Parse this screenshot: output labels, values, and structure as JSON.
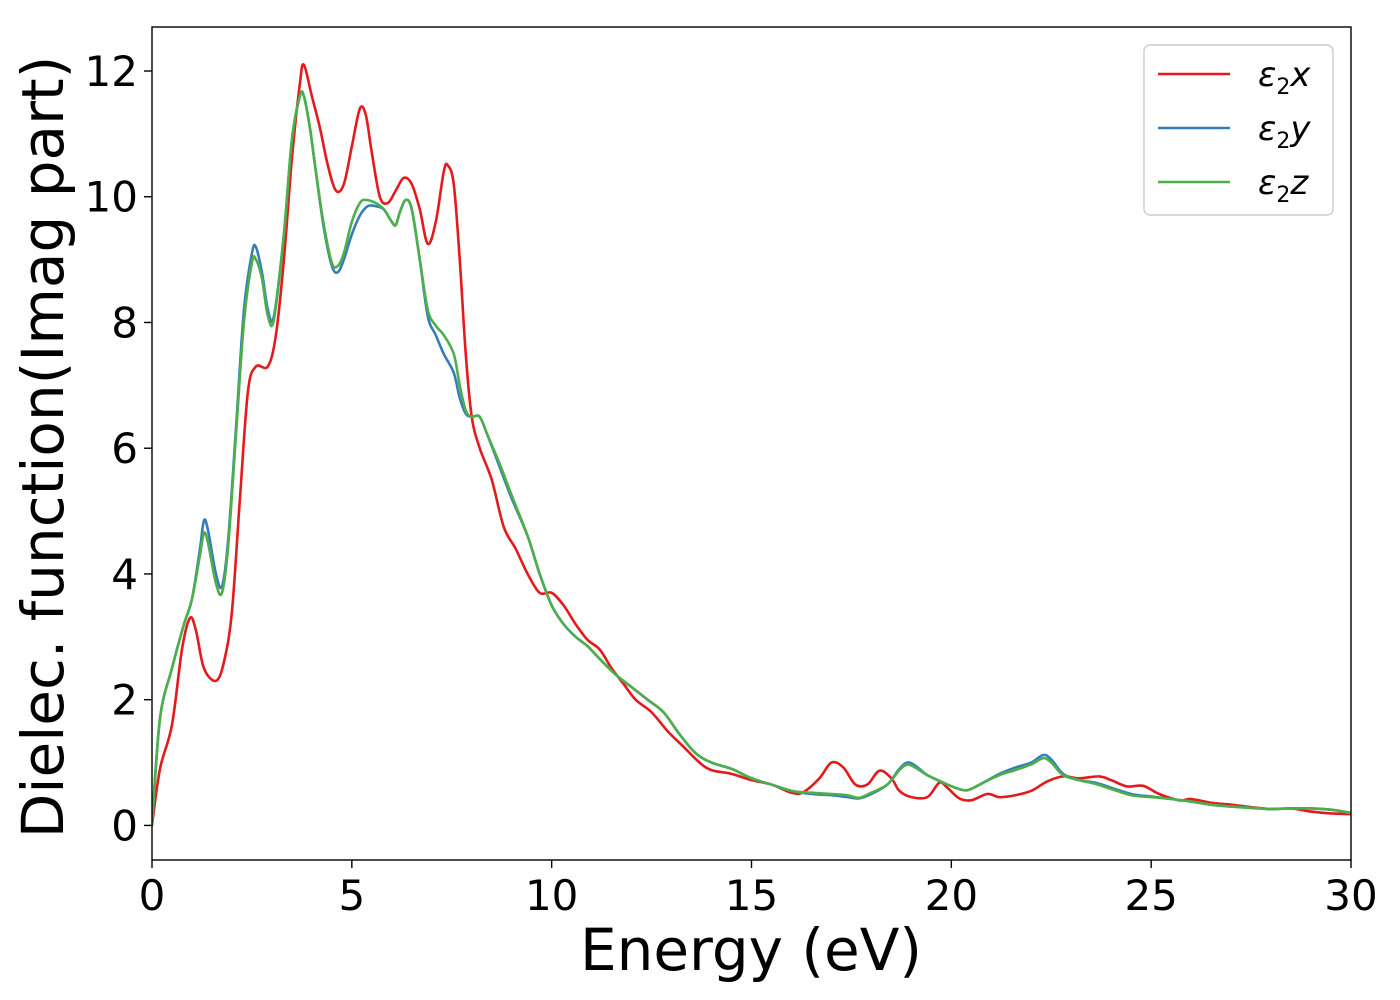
{
  "chart_data": {
    "type": "line",
    "title": "",
    "xlabel": "Energy (eV)",
    "ylabel": "Dielec. function(Imag part)",
    "xlim": [
      0,
      30
    ],
    "ylim": [
      -0.55,
      12.7
    ],
    "xticks": [
      0,
      5,
      10,
      15,
      20,
      25,
      30
    ],
    "yticks": [
      0,
      2,
      4,
      6,
      8,
      10,
      12
    ],
    "grid": false,
    "legend_position": "top-right",
    "series": [
      {
        "name": "ε2x",
        "legend": {
          "base": "ε",
          "sub": "2",
          "suffix": "x"
        },
        "color": "#e41a1c",
        "points": [
          [
            0,
            0
          ],
          [
            0.2,
            0.9
          ],
          [
            0.5,
            1.6
          ],
          [
            0.75,
            2.8
          ],
          [
            0.95,
            3.3
          ],
          [
            1.1,
            3.1
          ],
          [
            1.3,
            2.5
          ],
          [
            1.6,
            2.3
          ],
          [
            1.8,
            2.6
          ],
          [
            2.0,
            3.4
          ],
          [
            2.2,
            5.2
          ],
          [
            2.4,
            6.9
          ],
          [
            2.6,
            7.3
          ],
          [
            2.9,
            7.3
          ],
          [
            3.1,
            7.8
          ],
          [
            3.3,
            9.0
          ],
          [
            3.5,
            10.6
          ],
          [
            3.7,
            11.8
          ],
          [
            3.8,
            12.1
          ],
          [
            4.0,
            11.6
          ],
          [
            4.2,
            11.1
          ],
          [
            4.4,
            10.5
          ],
          [
            4.6,
            10.1
          ],
          [
            4.8,
            10.2
          ],
          [
            5.0,
            10.8
          ],
          [
            5.2,
            11.4
          ],
          [
            5.35,
            11.3
          ],
          [
            5.5,
            10.7
          ],
          [
            5.7,
            10.0
          ],
          [
            5.9,
            9.9
          ],
          [
            6.1,
            10.1
          ],
          [
            6.3,
            10.3
          ],
          [
            6.5,
            10.2
          ],
          [
            6.7,
            9.8
          ],
          [
            6.9,
            9.25
          ],
          [
            7.1,
            9.6
          ],
          [
            7.3,
            10.4
          ],
          [
            7.4,
            10.5
          ],
          [
            7.55,
            10.2
          ],
          [
            7.7,
            9.0
          ],
          [
            7.85,
            7.5
          ],
          [
            8.0,
            6.5
          ],
          [
            8.2,
            6.0
          ],
          [
            8.5,
            5.5
          ],
          [
            8.8,
            4.75
          ],
          [
            9.1,
            4.4
          ],
          [
            9.4,
            4.0
          ],
          [
            9.7,
            3.7
          ],
          [
            10.0,
            3.7
          ],
          [
            10.3,
            3.5
          ],
          [
            10.6,
            3.2
          ],
          [
            10.9,
            2.95
          ],
          [
            11.2,
            2.8
          ],
          [
            11.5,
            2.5
          ],
          [
            11.8,
            2.25
          ],
          [
            12.1,
            2.0
          ],
          [
            12.5,
            1.8
          ],
          [
            12.9,
            1.5
          ],
          [
            13.3,
            1.25
          ],
          [
            13.7,
            1.0
          ],
          [
            14.0,
            0.88
          ],
          [
            14.5,
            0.82
          ],
          [
            15.0,
            0.72
          ],
          [
            15.5,
            0.65
          ],
          [
            16.0,
            0.52
          ],
          [
            16.3,
            0.53
          ],
          [
            16.7,
            0.75
          ],
          [
            17.0,
            1.0
          ],
          [
            17.3,
            0.92
          ],
          [
            17.6,
            0.65
          ],
          [
            17.9,
            0.65
          ],
          [
            18.2,
            0.87
          ],
          [
            18.5,
            0.75
          ],
          [
            18.7,
            0.55
          ],
          [
            19.0,
            0.45
          ],
          [
            19.4,
            0.45
          ],
          [
            19.7,
            0.68
          ],
          [
            19.9,
            0.6
          ],
          [
            20.2,
            0.43
          ],
          [
            20.5,
            0.4
          ],
          [
            20.9,
            0.5
          ],
          [
            21.2,
            0.45
          ],
          [
            21.6,
            0.48
          ],
          [
            22.0,
            0.55
          ],
          [
            22.4,
            0.7
          ],
          [
            22.8,
            0.78
          ],
          [
            23.2,
            0.75
          ],
          [
            23.7,
            0.78
          ],
          [
            24.0,
            0.72
          ],
          [
            24.4,
            0.62
          ],
          [
            24.8,
            0.63
          ],
          [
            25.2,
            0.5
          ],
          [
            25.7,
            0.4
          ],
          [
            26.0,
            0.42
          ],
          [
            26.5,
            0.36
          ],
          [
            27.0,
            0.33
          ],
          [
            27.5,
            0.29
          ],
          [
            28.0,
            0.26
          ],
          [
            28.5,
            0.27
          ],
          [
            29.0,
            0.22
          ],
          [
            29.5,
            0.19
          ],
          [
            30.0,
            0.18
          ]
        ]
      },
      {
        "name": "ε2y",
        "legend": {
          "base": "ε",
          "sub": "2",
          "suffix": "y"
        },
        "color": "#377eb8",
        "points": [
          [
            0,
            0
          ],
          [
            0.2,
            1.7
          ],
          [
            0.5,
            2.5
          ],
          [
            0.8,
            3.2
          ],
          [
            1.0,
            3.6
          ],
          [
            1.2,
            4.4
          ],
          [
            1.3,
            4.85
          ],
          [
            1.4,
            4.7
          ],
          [
            1.6,
            4.0
          ],
          [
            1.75,
            3.8
          ],
          [
            1.9,
            4.5
          ],
          [
            2.1,
            6.3
          ],
          [
            2.3,
            8.2
          ],
          [
            2.5,
            9.1
          ],
          [
            2.6,
            9.2
          ],
          [
            2.75,
            8.8
          ],
          [
            2.9,
            8.2
          ],
          [
            3.05,
            8.1
          ],
          [
            3.3,
            9.4
          ],
          [
            3.5,
            10.9
          ],
          [
            3.7,
            11.6
          ],
          [
            3.8,
            11.6
          ],
          [
            3.95,
            11.1
          ],
          [
            4.1,
            10.4
          ],
          [
            4.3,
            9.5
          ],
          [
            4.5,
            8.9
          ],
          [
            4.65,
            8.8
          ],
          [
            4.8,
            9.0
          ],
          [
            5.0,
            9.4
          ],
          [
            5.2,
            9.7
          ],
          [
            5.4,
            9.85
          ],
          [
            5.6,
            9.85
          ],
          [
            5.8,
            9.8
          ],
          [
            6.0,
            9.6
          ],
          [
            6.1,
            9.55
          ],
          [
            6.2,
            9.75
          ],
          [
            6.35,
            9.95
          ],
          [
            6.5,
            9.8
          ],
          [
            6.7,
            9.0
          ],
          [
            6.9,
            8.1
          ],
          [
            7.1,
            7.8
          ],
          [
            7.3,
            7.5
          ],
          [
            7.55,
            7.2
          ],
          [
            7.7,
            6.8
          ],
          [
            7.85,
            6.55
          ],
          [
            8.0,
            6.5
          ],
          [
            8.2,
            6.5
          ],
          [
            8.4,
            6.2
          ],
          [
            8.7,
            5.7
          ],
          [
            9.0,
            5.2
          ],
          [
            9.4,
            4.6
          ],
          [
            9.7,
            4.0
          ],
          [
            10.0,
            3.5
          ],
          [
            10.3,
            3.2
          ],
          [
            10.6,
            3.0
          ],
          [
            10.9,
            2.85
          ],
          [
            11.2,
            2.65
          ],
          [
            11.6,
            2.4
          ],
          [
            12.0,
            2.2
          ],
          [
            12.4,
            2.0
          ],
          [
            12.8,
            1.8
          ],
          [
            13.2,
            1.45
          ],
          [
            13.6,
            1.15
          ],
          [
            14.0,
            1.0
          ],
          [
            14.5,
            0.9
          ],
          [
            15.0,
            0.75
          ],
          [
            15.5,
            0.65
          ],
          [
            16.0,
            0.55
          ],
          [
            16.5,
            0.5
          ],
          [
            17.0,
            0.48
          ],
          [
            17.4,
            0.45
          ],
          [
            17.7,
            0.43
          ],
          [
            18.0,
            0.5
          ],
          [
            18.4,
            0.65
          ],
          [
            18.7,
            0.9
          ],
          [
            18.9,
            1.0
          ],
          [
            19.1,
            0.95
          ],
          [
            19.4,
            0.8
          ],
          [
            19.8,
            0.68
          ],
          [
            20.1,
            0.6
          ],
          [
            20.4,
            0.56
          ],
          [
            20.8,
            0.68
          ],
          [
            21.2,
            0.82
          ],
          [
            21.6,
            0.92
          ],
          [
            22.0,
            1.0
          ],
          [
            22.3,
            1.12
          ],
          [
            22.5,
            1.05
          ],
          [
            22.8,
            0.82
          ],
          [
            23.2,
            0.72
          ],
          [
            23.6,
            0.68
          ],
          [
            24.0,
            0.6
          ],
          [
            24.5,
            0.5
          ],
          [
            25.0,
            0.46
          ],
          [
            25.5,
            0.42
          ],
          [
            26.0,
            0.38
          ],
          [
            26.5,
            0.33
          ],
          [
            27.0,
            0.3
          ],
          [
            27.5,
            0.28
          ],
          [
            28.0,
            0.26
          ],
          [
            28.5,
            0.27
          ],
          [
            29.0,
            0.27
          ],
          [
            29.5,
            0.25
          ],
          [
            30.0,
            0.2
          ]
        ]
      },
      {
        "name": "ε2z",
        "legend": {
          "base": "ε",
          "sub": "2",
          "suffix": "z"
        },
        "color": "#4daf4a",
        "points": [
          [
            0,
            0
          ],
          [
            0.2,
            1.7
          ],
          [
            0.5,
            2.5
          ],
          [
            0.8,
            3.2
          ],
          [
            1.0,
            3.6
          ],
          [
            1.2,
            4.3
          ],
          [
            1.3,
            4.65
          ],
          [
            1.4,
            4.5
          ],
          [
            1.6,
            3.85
          ],
          [
            1.75,
            3.7
          ],
          [
            1.9,
            4.4
          ],
          [
            2.1,
            6.2
          ],
          [
            2.3,
            8.0
          ],
          [
            2.5,
            8.95
          ],
          [
            2.6,
            9.0
          ],
          [
            2.75,
            8.7
          ],
          [
            2.9,
            8.1
          ],
          [
            3.05,
            8.05
          ],
          [
            3.3,
            9.4
          ],
          [
            3.5,
            10.9
          ],
          [
            3.7,
            11.6
          ],
          [
            3.8,
            11.6
          ],
          [
            3.95,
            11.1
          ],
          [
            4.1,
            10.4
          ],
          [
            4.3,
            9.55
          ],
          [
            4.5,
            8.95
          ],
          [
            4.65,
            8.9
          ],
          [
            4.8,
            9.1
          ],
          [
            5.0,
            9.6
          ],
          [
            5.2,
            9.9
          ],
          [
            5.35,
            9.95
          ],
          [
            5.6,
            9.9
          ],
          [
            5.8,
            9.8
          ],
          [
            6.0,
            9.6
          ],
          [
            6.1,
            9.55
          ],
          [
            6.2,
            9.75
          ],
          [
            6.35,
            9.95
          ],
          [
            6.5,
            9.8
          ],
          [
            6.7,
            9.0
          ],
          [
            6.9,
            8.2
          ],
          [
            7.1,
            7.95
          ],
          [
            7.3,
            7.8
          ],
          [
            7.55,
            7.5
          ],
          [
            7.7,
            7.0
          ],
          [
            7.85,
            6.6
          ],
          [
            8.0,
            6.5
          ],
          [
            8.2,
            6.5
          ],
          [
            8.4,
            6.2
          ],
          [
            8.7,
            5.75
          ],
          [
            9.0,
            5.25
          ],
          [
            9.4,
            4.6
          ],
          [
            9.7,
            4.0
          ],
          [
            10.0,
            3.5
          ],
          [
            10.3,
            3.2
          ],
          [
            10.6,
            3.0
          ],
          [
            10.9,
            2.85
          ],
          [
            11.2,
            2.65
          ],
          [
            11.6,
            2.4
          ],
          [
            12.0,
            2.2
          ],
          [
            12.4,
            2.0
          ],
          [
            12.8,
            1.8
          ],
          [
            13.2,
            1.45
          ],
          [
            13.6,
            1.15
          ],
          [
            14.0,
            1.0
          ],
          [
            14.5,
            0.9
          ],
          [
            15.0,
            0.75
          ],
          [
            15.5,
            0.65
          ],
          [
            16.0,
            0.55
          ],
          [
            16.5,
            0.52
          ],
          [
            17.0,
            0.5
          ],
          [
            17.4,
            0.48
          ],
          [
            17.7,
            0.44
          ],
          [
            18.0,
            0.52
          ],
          [
            18.4,
            0.65
          ],
          [
            18.7,
            0.88
          ],
          [
            18.9,
            0.97
          ],
          [
            19.1,
            0.92
          ],
          [
            19.4,
            0.8
          ],
          [
            19.8,
            0.68
          ],
          [
            20.1,
            0.6
          ],
          [
            20.4,
            0.56
          ],
          [
            20.8,
            0.68
          ],
          [
            21.2,
            0.8
          ],
          [
            21.6,
            0.88
          ],
          [
            22.0,
            0.97
          ],
          [
            22.3,
            1.07
          ],
          [
            22.5,
            1.0
          ],
          [
            22.8,
            0.8
          ],
          [
            23.2,
            0.72
          ],
          [
            23.6,
            0.66
          ],
          [
            24.0,
            0.58
          ],
          [
            24.5,
            0.48
          ],
          [
            25.0,
            0.45
          ],
          [
            25.5,
            0.42
          ],
          [
            26.0,
            0.38
          ],
          [
            26.5,
            0.33
          ],
          [
            27.0,
            0.3
          ],
          [
            27.5,
            0.28
          ],
          [
            28.0,
            0.26
          ],
          [
            28.5,
            0.27
          ],
          [
            29.0,
            0.27
          ],
          [
            29.5,
            0.25
          ],
          [
            30.0,
            0.2
          ]
        ]
      }
    ]
  }
}
